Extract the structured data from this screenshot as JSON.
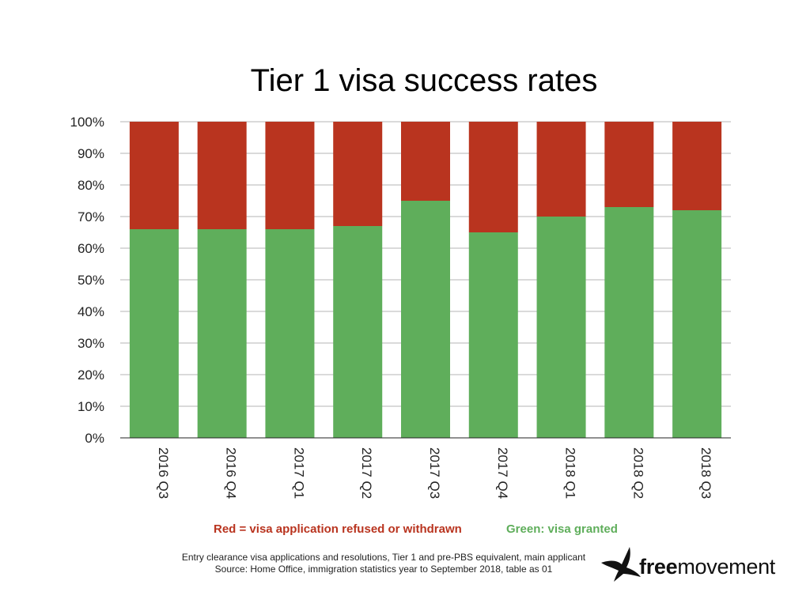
{
  "chart_data": {
    "type": "bar",
    "stacked": true,
    "title": "Tier 1 visa success rates",
    "categories": [
      "2016 Q3",
      "2016 Q4",
      "2017 Q1",
      "2017 Q2",
      "2017 Q3",
      "2017 Q4",
      "2018 Q1",
      "2018 Q2",
      "2018 Q3"
    ],
    "series": [
      {
        "values": [
          66,
          66,
          66,
          67,
          75,
          65,
          70,
          73,
          72
        ],
        "color": "#5fae5b"
      },
      {
        "values": [
          34,
          34,
          34,
          33,
          25,
          35,
          30,
          27,
          28
        ],
        "color": "#b9341f"
      }
    ],
    "ylim": [
      0,
      100
    ],
    "yticks": [
      "0%",
      "10%",
      "20%",
      "30%",
      "40%",
      "50%",
      "60%",
      "70%",
      "80%",
      "90%",
      "100%"
    ],
    "grid": true,
    "legend": {
      "red_label": "Red = visa application refused or withdrawn",
      "green_label": "Green: visa granted",
      "red_color": "#b9341f",
      "green_color": "#5fae5b"
    }
  },
  "source": {
    "line1": "Entry clearance visa applications and resolutions, Tier 1 and pre-PBS equivalent, main applicant",
    "line2": "Source: Home Office, immigration statistics year to September 2018, table as 01"
  },
  "logo": {
    "bold_part": "free",
    "regular_part": "movement",
    "icon": "bird-icon"
  }
}
